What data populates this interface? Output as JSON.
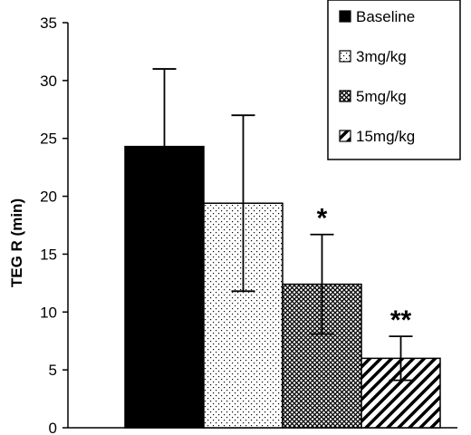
{
  "chart_data": {
    "type": "bar",
    "title": "",
    "xlabel": "",
    "ylabel": "TEG R (min)",
    "ylim": [
      0,
      35
    ],
    "yticks": [
      0,
      5,
      10,
      15,
      20,
      25,
      30,
      35
    ],
    "grid": false,
    "legend_position": "top-right",
    "series": [
      {
        "name": "Baseline",
        "value": 24.3,
        "error": 6.7,
        "pattern": "solid",
        "annotation": ""
      },
      {
        "name": "3mg/kg",
        "value": 19.4,
        "error": 7.6,
        "pattern": "dots",
        "annotation": ""
      },
      {
        "name": "5mg/kg",
        "value": 12.4,
        "error": 4.3,
        "pattern": "crosshatch",
        "annotation": "*"
      },
      {
        "name": "15mg/kg",
        "value": 6.0,
        "error": 1.9,
        "pattern": "diagonal",
        "annotation": "**"
      }
    ]
  }
}
